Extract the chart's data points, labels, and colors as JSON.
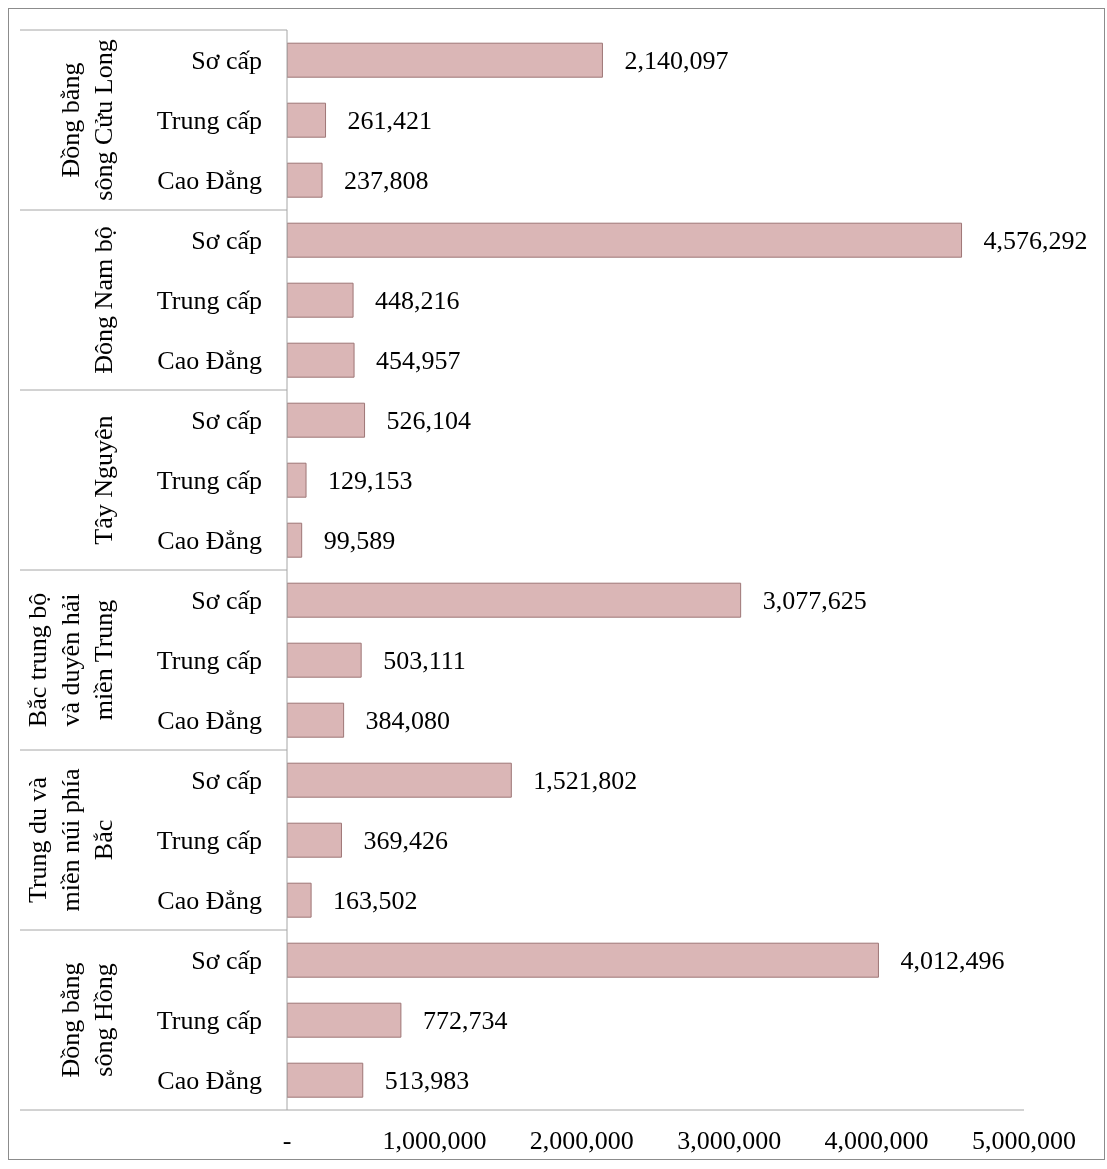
{
  "chart_data": {
    "type": "bar",
    "orientation": "horizontal",
    "categories": [
      "Sơ cấp",
      "Trung cấp",
      "Cao Đẳng",
      "Sơ cấp",
      "Trung cấp",
      "Cao Đẳng",
      "Sơ cấp",
      "Trung cấp",
      "Cao Đẳng",
      "Sơ cấp",
      "Trung cấp",
      "Cao Đẳng",
      "Sơ cấp",
      "Trung cấp",
      "Cao Đẳng",
      "Sơ cấp",
      "Trung cấp",
      "Cao Đẳng"
    ],
    "values": [
      2140097,
      261421,
      237808,
      4576292,
      448216,
      454957,
      526104,
      129153,
      99589,
      3077625,
      503111,
      384080,
      1521802,
      369426,
      163502,
      4012496,
      772734,
      513983
    ],
    "value_labels": [
      "2,140,097",
      "261,421",
      "237,808",
      "4,576,292",
      "448,216",
      "454,957",
      "526,104",
      "129,153",
      "99,589",
      "3,077,625",
      "503,111",
      "384,080",
      "1,521,802",
      "369,426",
      "163,502",
      "4,012,496",
      "772,734",
      "513,983"
    ],
    "color": "#dab6b6",
    "xlim": [
      0,
      5000000
    ],
    "xticks": [
      {
        "value": 0,
        "label": "-"
      },
      {
        "value": 1000000,
        "label": "1,000,000"
      },
      {
        "value": 2000000,
        "label": "2,000,000"
      },
      {
        "value": 3000000,
        "label": "3,000,000"
      },
      {
        "value": 4000000,
        "label": "4,000,000"
      },
      {
        "value": 5000000,
        "label": "5,000,000"
      }
    ],
    "annotations": [
      "Đồng bằng\nsông Cửu Long",
      "Đông Nam bộ",
      "Tây Nguyên",
      "Bắc trung bộ\nvà duyên hải\nmiền Trung",
      "Trung du và\nmiền núi phía\nBắc",
      "Đồng bằng\nsông Hồng"
    ]
  }
}
